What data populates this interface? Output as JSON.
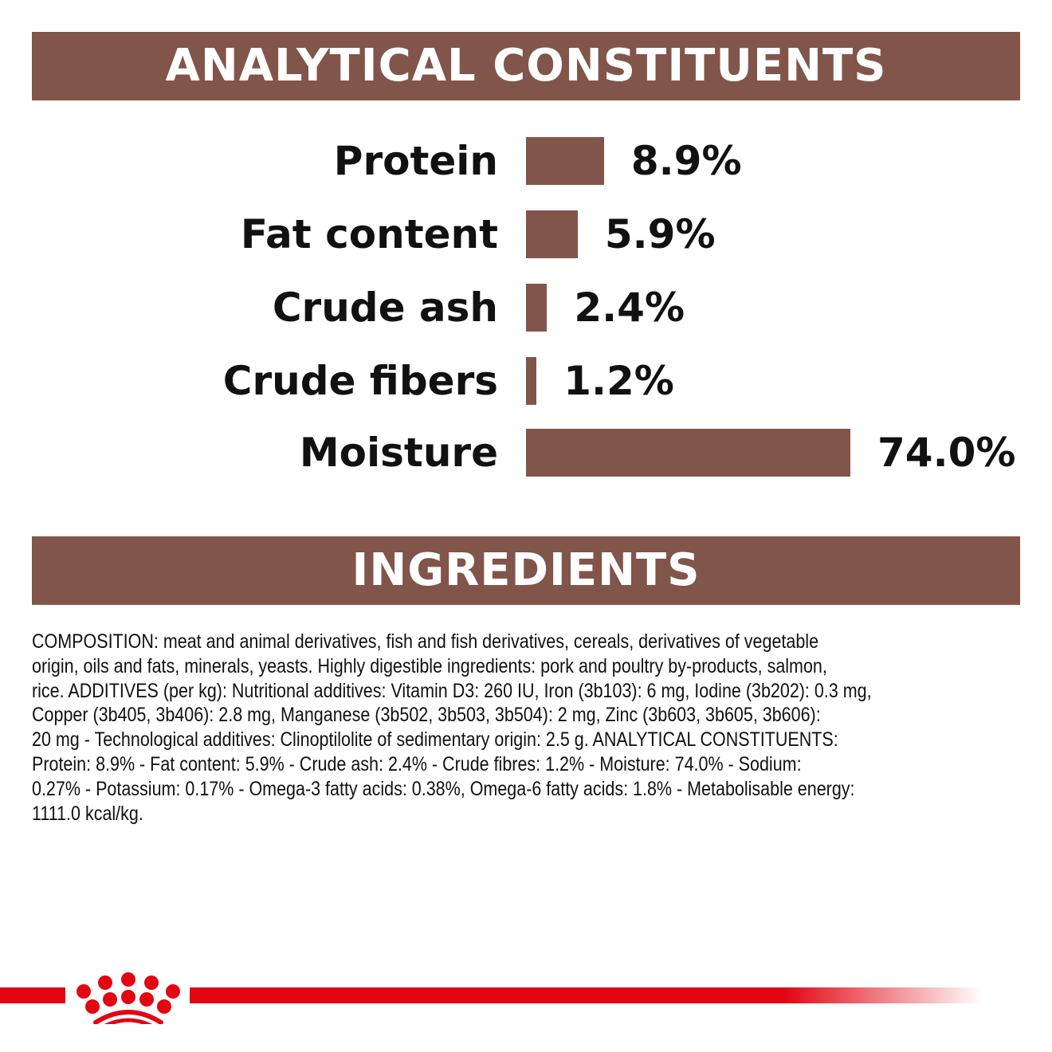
{
  "sections": {
    "analytical_title": "ANALYTICAL CONSTITUENTS",
    "ingredients_title": "INGREDIENTS"
  },
  "chart_data": {
    "type": "bar",
    "orientation": "horizontal",
    "title": "ANALYTICAL CONSTITUENTS",
    "categories": [
      "Protein",
      "Fat content",
      "Crude ash",
      "Crude fibers",
      "Moisture"
    ],
    "values": [
      8.9,
      5.9,
      2.4,
      1.2,
      74.0
    ],
    "value_labels": [
      "8.9%",
      "5.9%",
      "2.4%",
      "1.2%",
      "74.0%"
    ],
    "unit": "%",
    "bar_color": "#82554a",
    "grid": false
  },
  "ingredients_lines": [
    "COMPOSITION: meat and animal derivatives, fish and fish derivatives, cereals, derivatives of vegetable",
    "origin, oils and fats, minerals, yeasts. Highly digestible ingredients: pork and poultry by-products, salmon,",
    "rice. ADDITIVES (per kg): Nutritional additives: Vitamin D3: 260 IU, Iron (3b103): 6 mg, Iodine (3b202): 0.3 mg,",
    "Copper (3b405, 3b406): 2.8 mg, Manganese (3b502, 3b503, 3b504): 2 mg, Zinc (3b603, 3b605, 3b606):",
    "20 mg - Technological additives: Clinoptilolite of sedimentary origin: 2.5 g. ANALYTICAL CONSTITUENTS:",
    "Protein: 8.9% - Fat content: 5.9% - Crude ash: 2.4% - Crude fibres: 1.2% - Moisture: 74.0% - Sodium:",
    "0.27% - Potassium: 0.17% - Omega-3 fatty acids: 0.38%, Omega-6 fatty acids: 1.8% - Metabolisable energy:",
    "1111.0 kcal/kg."
  ],
  "colors": {
    "brand_brown": "#82554a",
    "brand_red": "#e20613"
  },
  "logo": {
    "name": "crown-logo"
  }
}
